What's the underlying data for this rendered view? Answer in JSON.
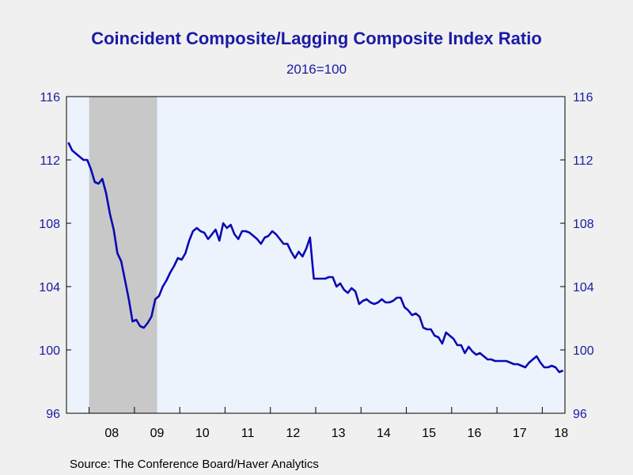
{
  "chart_data": {
    "type": "line",
    "title": "Coincident Composite/Lagging Composite Index Ratio",
    "subtitle": "2016=100",
    "source": "Source:  The Conference Board/Haver Analytics",
    "ylim": [
      96,
      116
    ],
    "yticks": [
      96,
      100,
      104,
      108,
      112,
      116
    ],
    "xlim": [
      "2007-07",
      "2018-06"
    ],
    "xtick_labels": [
      "08",
      "09",
      "10",
      "11",
      "12",
      "13",
      "14",
      "15",
      "16",
      "17",
      "18"
    ],
    "shaded_period": {
      "start": "2008-01",
      "end": "2009-06",
      "color": "#c8c8c8"
    },
    "colors": {
      "line": "#0a0ab4",
      "plot_background": "#edf3fc",
      "text": "#1a1aa6",
      "outer_background": "#f0f0f0"
    },
    "legend": "none",
    "grid": false,
    "series": [
      {
        "x": [
          "2007-07",
          "2007-08",
          "2007-09",
          "2007-10",
          "2007-11",
          "2007-12",
          "2008-01",
          "2008-02",
          "2008-03",
          "2008-04",
          "2008-05",
          "2008-06",
          "2008-07",
          "2008-08",
          "2008-09",
          "2008-10",
          "2008-11",
          "2008-12",
          "2009-01",
          "2009-02",
          "2009-03",
          "2009-04",
          "2009-05",
          "2009-06",
          "2009-07",
          "2009-08",
          "2009-09",
          "2009-10",
          "2009-11",
          "2009-12",
          "2010-01",
          "2010-02",
          "2010-03",
          "2010-04",
          "2010-05",
          "2010-06",
          "2010-07",
          "2010-08",
          "2010-09",
          "2010-10",
          "2010-11",
          "2010-12",
          "2011-01",
          "2011-02",
          "2011-03",
          "2011-04",
          "2011-05",
          "2011-06",
          "2011-07",
          "2011-08",
          "2011-09",
          "2011-10",
          "2011-11",
          "2011-12",
          "2012-01",
          "2012-02",
          "2012-03",
          "2012-04",
          "2012-05",
          "2012-06",
          "2012-07",
          "2012-08",
          "2012-09",
          "2012-10",
          "2012-11",
          "2012-12",
          "2013-01",
          "2013-02",
          "2013-03",
          "2013-04",
          "2013-05",
          "2013-06",
          "2013-07",
          "2013-08",
          "2013-09",
          "2013-10",
          "2013-11",
          "2013-12",
          "2014-01",
          "2014-02",
          "2014-03",
          "2014-04",
          "2014-05",
          "2014-06",
          "2014-07",
          "2014-08",
          "2014-09",
          "2014-10",
          "2014-11",
          "2014-12",
          "2015-01",
          "2015-02",
          "2015-03",
          "2015-04",
          "2015-05",
          "2015-06",
          "2015-07",
          "2015-08",
          "2015-09",
          "2015-10",
          "2015-11",
          "2015-12",
          "2016-01",
          "2016-02",
          "2016-03",
          "2016-04",
          "2016-05",
          "2016-06",
          "2016-07",
          "2016-08",
          "2016-09",
          "2016-10",
          "2016-11",
          "2016-12",
          "2017-01",
          "2017-02",
          "2017-03",
          "2017-04",
          "2017-05",
          "2017-06",
          "2017-07",
          "2017-08",
          "2017-09",
          "2017-10",
          "2017-11",
          "2017-12",
          "2018-01",
          "2018-02",
          "2018-03",
          "2018-04",
          "2018-05",
          "2018-06"
        ],
        "values": [
          113.1,
          112.6,
          112.4,
          112.2,
          112.0,
          112.0,
          111.4,
          110.6,
          110.5,
          110.8,
          109.9,
          108.6,
          107.6,
          106.1,
          105.6,
          104.4,
          103.2,
          101.8,
          101.9,
          101.5,
          101.4,
          101.7,
          102.1,
          103.2,
          103.4,
          104.0,
          104.4,
          104.9,
          105.3,
          105.8,
          105.7,
          106.1,
          106.9,
          107.5,
          107.7,
          107.5,
          107.4,
          107.0,
          107.3,
          107.6,
          106.9,
          108.0,
          107.7,
          107.9,
          107.3,
          107.0,
          107.5,
          107.5,
          107.4,
          107.2,
          107.0,
          106.7,
          107.1,
          107.2,
          107.5,
          107.3,
          107.0,
          106.7,
          106.7,
          106.2,
          105.8,
          106.2,
          105.9,
          106.4,
          107.1,
          104.5,
          104.5,
          104.5,
          104.5,
          104.6,
          104.6,
          104.0,
          104.2,
          103.8,
          103.6,
          103.9,
          103.7,
          102.9,
          103.1,
          103.2,
          103.0,
          102.9,
          103.0,
          103.2,
          103.0,
          103.0,
          103.1,
          103.3,
          103.3,
          102.7,
          102.5,
          102.2,
          102.3,
          102.1,
          101.4,
          101.3,
          101.3,
          100.9,
          100.8,
          100.4,
          101.1,
          100.9,
          100.7,
          100.3,
          100.3,
          99.8,
          100.2,
          99.9,
          99.7,
          99.8,
          99.6,
          99.4,
          99.4,
          99.3,
          99.3,
          99.3,
          99.3,
          99.2,
          99.1,
          99.1,
          99.0,
          98.9,
          99.2,
          99.4,
          99.6,
          99.2,
          98.9,
          98.9,
          99.0,
          98.9,
          98.6,
          98.7
        ]
      }
    ]
  }
}
